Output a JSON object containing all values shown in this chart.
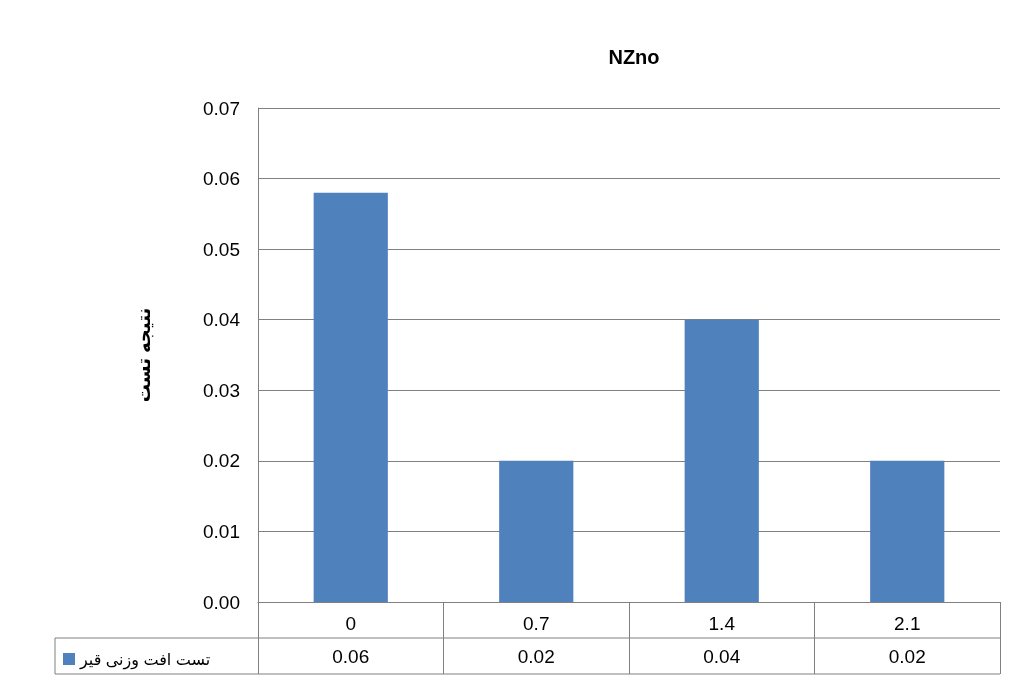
{
  "chart_data": {
    "type": "bar",
    "title": "NZno",
    "ylabel": "نتیجه تست",
    "categories": [
      "0",
      "0.7",
      "1.4",
      "2.1"
    ],
    "series": [
      {
        "name": "تست افت وزنی قیر",
        "color": "#4f81bd",
        "values": [
          0.058,
          0.02,
          0.04,
          0.02
        ],
        "value_labels": [
          "0.06",
          "0.02",
          "0.04",
          "0.02"
        ]
      }
    ],
    "ylim": [
      0,
      0.07
    ],
    "yticks": [
      {
        "value": 0,
        "label": "0.00"
      },
      {
        "value": 0.01,
        "label": "0.01"
      },
      {
        "value": 0.02,
        "label": "0.02"
      },
      {
        "value": 0.03,
        "label": "0.03"
      },
      {
        "value": 0.04,
        "label": "0.04"
      },
      {
        "value": 0.05,
        "label": "0.05"
      },
      {
        "value": 0.06,
        "label": "0.06"
      },
      {
        "value": 0.07,
        "label": "0.07"
      }
    ],
    "grid": "y",
    "legend": "bottom left"
  }
}
